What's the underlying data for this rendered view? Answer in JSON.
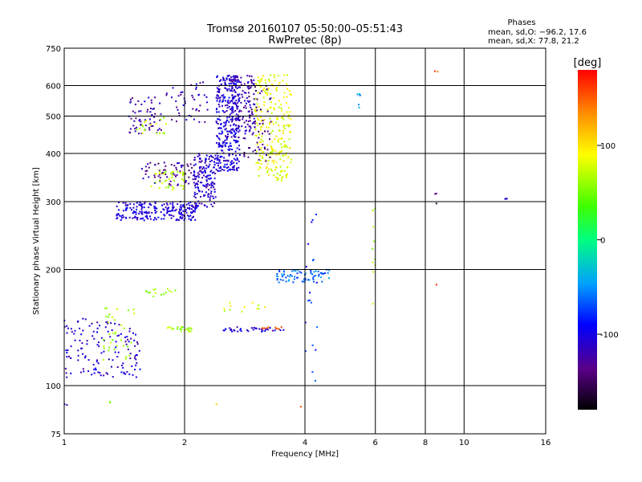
{
  "chart_data": {
    "type": "scatter",
    "title": "Tromsø 20160107 05:50:00–05:51:43",
    "subtitle": "RwPretec (8p)",
    "xlabel": "Frequency [MHz]",
    "ylabel": "Stationary phase Virtual Height [km]",
    "x_scale": "log",
    "y_scale": "log",
    "xlim": [
      1,
      16
    ],
    "ylim": [
      75,
      750
    ],
    "grid": true,
    "x_ticks": [
      1,
      2,
      4,
      6,
      8,
      10,
      16
    ],
    "y_ticks": [
      75,
      100,
      200,
      300,
      400,
      500,
      600,
      750
    ],
    "phases_box": {
      "heading": "Phases",
      "line1": "mean, sd,O: −96.2, 17.6",
      "line2": "mean, sd,X:  77.8, 21.2"
    },
    "colorbar": {
      "label": "[deg]",
      "range": [
        -180,
        180
      ],
      "ticks": [
        100,
        0,
        -100
      ]
    },
    "clusters": [
      {
        "x": [
          1.35,
          2.15
        ],
        "y": [
          268,
          300
        ],
        "phase": -105,
        "n": 220
      },
      {
        "x": [
          2.1,
          2.4
        ],
        "y": [
          290,
          400
        ],
        "phase": -110,
        "n": 160
      },
      {
        "x": [
          2.4,
          2.75
        ],
        "y": [
          360,
          640
        ],
        "phase": -105,
        "n": 340
      },
      {
        "x": [
          2.6,
          3.0
        ],
        "y": [
          450,
          640
        ],
        "phase": -120,
        "n": 120
      },
      {
        "x": [
          1.55,
          2.1
        ],
        "y": [
          330,
          380
        ],
        "phase": -130,
        "n": 60
      },
      {
        "x": [
          1.65,
          2.0
        ],
        "y": [
          320,
          360
        ],
        "phase": 70,
        "n": 40
      },
      {
        "x": [
          3.0,
          3.7
        ],
        "y": [
          340,
          640
        ],
        "phase": 85,
        "n": 250
      },
      {
        "x": [
          2.8,
          3.3
        ],
        "y": [
          380,
          600
        ],
        "phase": -140,
        "n": 60
      },
      {
        "x": [
          1.45,
          1.75
        ],
        "y": [
          450,
          560
        ],
        "phase": -120,
        "n": 60
      },
      {
        "x": [
          1.8,
          2.3
        ],
        "y": [
          480,
          620
        ],
        "phase": -120,
        "n": 45
      },
      {
        "x": [
          1.5,
          1.8
        ],
        "y": [
          450,
          500
        ],
        "phase": 70,
        "n": 18
      },
      {
        "x": [
          3.4,
          4.6
        ],
        "y": [
          185,
          200
        ],
        "phase": -60,
        "n": 70
      },
      {
        "x": [
          1.0,
          1.55
        ],
        "y": [
          105,
          150
        ],
        "phase": -110,
        "n": 140
      },
      {
        "x": [
          1.25,
          1.5
        ],
        "y": [
          115,
          160
        ],
        "phase": 60,
        "n": 35
      },
      {
        "x": [
          1.8,
          2.1
        ],
        "y": [
          138,
          142
        ],
        "phase": 60,
        "n": 22
      },
      {
        "x": [
          2.5,
          3.6
        ],
        "y": [
          138,
          142
        ],
        "phase": -110,
        "n": 40
      },
      {
        "x": [
          3.1,
          3.5
        ],
        "y": [
          140,
          142
        ],
        "phase": 150,
        "n": 10
      },
      {
        "x": [
          1.6,
          1.9
        ],
        "y": [
          170,
          180
        ],
        "phase": 60,
        "n": 15
      },
      {
        "x": [
          2.5,
          3.2
        ],
        "y": [
          155,
          165
        ],
        "phase": 80,
        "n": 12
      },
      {
        "x": [
          4.0,
          4.3
        ],
        "y": [
          100,
          300
        ],
        "phase": -80,
        "n": 20
      },
      {
        "x": [
          5.4,
          5.5
        ],
        "y": [
          520,
          600
        ],
        "phase": -40,
        "n": 6
      },
      {
        "x": [
          5.9,
          6.0
        ],
        "y": [
          150,
          300
        ],
        "phase": 60,
        "n": 10
      },
      {
        "x": [
          8.4,
          8.6
        ],
        "y": [
          290,
          320
        ],
        "phase": -150,
        "n": 3
      },
      {
        "x": [
          12.6,
          12.8
        ],
        "y": [
          302,
          306
        ],
        "phase": -100,
        "n": 3
      },
      {
        "x": [
          8.4,
          8.6
        ],
        "y": [
          640,
          660
        ],
        "phase": 150,
        "n": 2
      },
      {
        "x": [
          8.4,
          8.6
        ],
        "y": [
          182,
          186
        ],
        "phase": 150,
        "n": 1
      },
      {
        "x": [
          2.4,
          2.5
        ],
        "y": [
          88,
          90
        ],
        "phase": 130,
        "n": 1
      },
      {
        "x": [
          3.9,
          4.0
        ],
        "y": [
          88,
          90
        ],
        "phase": 150,
        "n": 1
      },
      {
        "x": [
          1.0,
          1.02
        ],
        "y": [
          88,
          91
        ],
        "phase": -110,
        "n": 2
      },
      {
        "x": [
          1.3,
          1.32
        ],
        "y": [
          90,
          92
        ],
        "phase": 60,
        "n": 2
      }
    ]
  }
}
